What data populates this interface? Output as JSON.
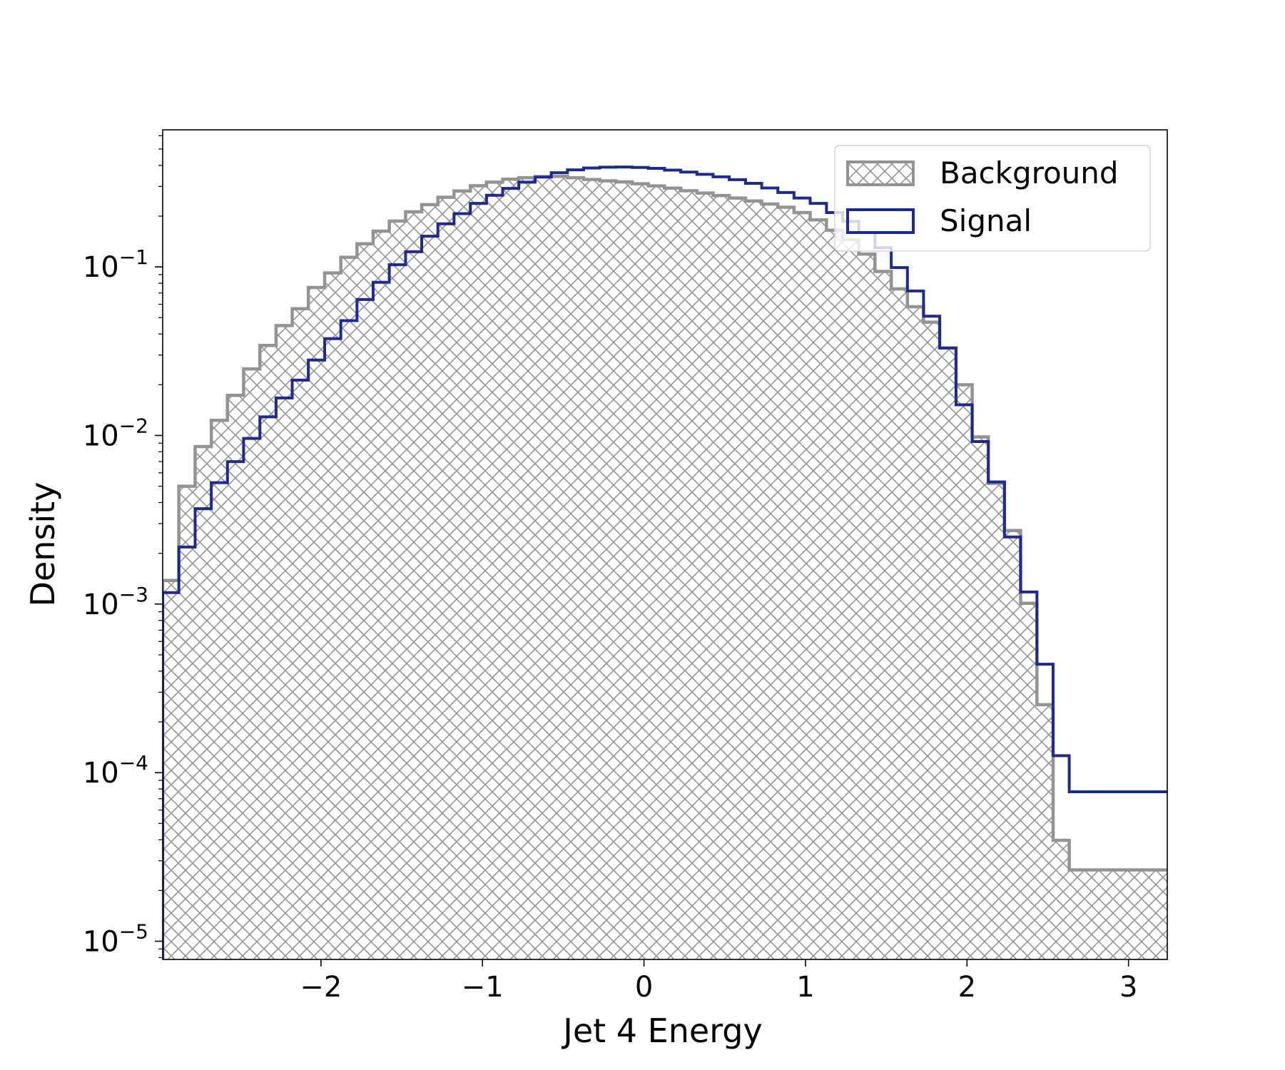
{
  "chart_data": {
    "type": "histogram",
    "title": "",
    "xlabel": "Jet 4 Energy",
    "ylabel": "Density",
    "yscale": "log",
    "xlim": [
      -2.98,
      3.24
    ],
    "ylim": [
      7.8e-06,
      0.65
    ],
    "grid": false,
    "legend_position": "top-right",
    "x_ticks": [
      {
        "value": -2,
        "label": "−2"
      },
      {
        "value": -1,
        "label": "−1"
      },
      {
        "value": 0,
        "label": "0"
      },
      {
        "value": 1,
        "label": "1"
      },
      {
        "value": 2,
        "label": "2"
      },
      {
        "value": 3,
        "label": "3"
      }
    ],
    "y_ticks": [
      {
        "value": 0.1,
        "base": "10",
        "exp": "−1"
      },
      {
        "value": 0.01,
        "base": "10",
        "exp": "−2"
      },
      {
        "value": 0.001,
        "base": "10",
        "exp": "−3"
      },
      {
        "value": 0.0001,
        "base": "10",
        "exp": "−4"
      },
      {
        "value": 1e-05,
        "base": "10",
        "exp": "−5"
      }
    ],
    "series": [
      {
        "name": "Background",
        "style": "filled-hatched",
        "color": "#939393",
        "edges": [
          -2.98,
          -2.88,
          -2.779,
          -2.679,
          -2.579,
          -2.479,
          -2.378,
          -2.278,
          -2.178,
          -2.078,
          -1.977,
          -1.877,
          -1.777,
          -1.677,
          -1.577,
          -1.476,
          -1.376,
          -1.276,
          -1.176,
          -1.075,
          -0.975,
          -0.875,
          -0.775,
          -0.674,
          -0.574,
          -0.474,
          -0.374,
          -0.274,
          -0.173,
          -0.073,
          0.027,
          0.127,
          0.228,
          0.328,
          0.428,
          0.528,
          0.629,
          0.729,
          0.829,
          0.929,
          1.029,
          1.13,
          1.23,
          1.33,
          1.43,
          1.531,
          1.631,
          1.731,
          1.831,
          1.932,
          2.032,
          2.132,
          2.232,
          2.332,
          2.433,
          2.533,
          2.633,
          2.733,
          2.834,
          2.934,
          3.034,
          3.134,
          3.24
        ],
        "values": [
          0.00138,
          0.005,
          0.0086,
          0.0123,
          0.0173,
          0.0248,
          0.0342,
          0.0449,
          0.0565,
          0.0755,
          0.092,
          0.114,
          0.137,
          0.163,
          0.187,
          0.212,
          0.234,
          0.259,
          0.282,
          0.303,
          0.318,
          0.331,
          0.338,
          0.343,
          0.344,
          0.338,
          0.33,
          0.324,
          0.319,
          0.311,
          0.302,
          0.293,
          0.283,
          0.274,
          0.265,
          0.256,
          0.246,
          0.236,
          0.226,
          0.21,
          0.19,
          0.165,
          0.145,
          0.119,
          0.094,
          0.074,
          0.058,
          0.047,
          0.033,
          0.02,
          0.0098,
          0.0052,
          0.00273,
          0.00101,
          0.000253,
          3.97e-05,
          2.65e-05,
          2.65e-05,
          2.65e-05,
          2.65e-05,
          2.65e-05,
          2.65e-05
        ]
      },
      {
        "name": "Signal",
        "style": "step",
        "color": "#1f2a8c",
        "edges": [
          -2.98,
          -2.88,
          -2.779,
          -2.679,
          -2.579,
          -2.479,
          -2.378,
          -2.278,
          -2.178,
          -2.078,
          -1.977,
          -1.877,
          -1.777,
          -1.677,
          -1.577,
          -1.476,
          -1.376,
          -1.276,
          -1.176,
          -1.075,
          -0.975,
          -0.875,
          -0.775,
          -0.674,
          -0.574,
          -0.474,
          -0.374,
          -0.274,
          -0.173,
          -0.073,
          0.027,
          0.127,
          0.228,
          0.328,
          0.428,
          0.528,
          0.629,
          0.729,
          0.829,
          0.929,
          1.029,
          1.13,
          1.23,
          1.33,
          1.43,
          1.531,
          1.631,
          1.731,
          1.831,
          1.932,
          2.032,
          2.132,
          2.232,
          2.332,
          2.433,
          2.533,
          2.633,
          2.733,
          2.834,
          2.934,
          3.034,
          3.134,
          3.24
        ],
        "values": [
          0.00117,
          0.00218,
          0.00368,
          0.00525,
          0.007,
          0.0096,
          0.0129,
          0.0167,
          0.0213,
          0.028,
          0.0375,
          0.048,
          0.064,
          0.081,
          0.103,
          0.123,
          0.152,
          0.18,
          0.207,
          0.238,
          0.266,
          0.292,
          0.318,
          0.341,
          0.362,
          0.376,
          0.386,
          0.39,
          0.391,
          0.389,
          0.384,
          0.375,
          0.365,
          0.354,
          0.342,
          0.329,
          0.313,
          0.294,
          0.276,
          0.256,
          0.238,
          0.21,
          0.186,
          0.16,
          0.13,
          0.099,
          0.072,
          0.051,
          0.033,
          0.0152,
          0.0092,
          0.0053,
          0.0025,
          0.00118,
          0.00044,
          0.000126,
          7.7e-05,
          7.7e-05,
          7.7e-05,
          7.7e-05,
          7.7e-05,
          7.7e-05
        ]
      }
    ]
  }
}
